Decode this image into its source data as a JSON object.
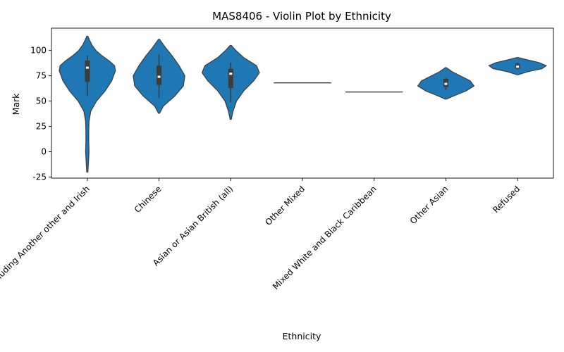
{
  "chart_data": {
    "type": "violin",
    "title": "MAS8406 - Violin Plot by Ethnicity",
    "xlabel": "Ethnicity",
    "ylabel": "Mark",
    "ylim": [
      -26,
      122
    ],
    "yticks": [
      -25,
      0,
      25,
      50,
      75,
      100
    ],
    "grid": false,
    "color": "#1f77b4",
    "box_color": "#3d3d3d",
    "categories": [
      "White including Another other and Irish",
      "Chinese",
      "Asian or Asian British (all)",
      "Other Mixed",
      "Mixed White and Black Caribbean",
      "Other Asian",
      "Refused"
    ],
    "violins": [
      {
        "category": "White including Another other and Irish",
        "profile": [
          [
            -20,
            0.02
          ],
          [
            -10,
            0.04
          ],
          [
            0,
            0.06
          ],
          [
            10,
            0.05
          ],
          [
            20,
            0.05
          ],
          [
            30,
            0.06
          ],
          [
            40,
            0.12
          ],
          [
            50,
            0.32
          ],
          [
            60,
            0.62
          ],
          [
            70,
            0.85
          ],
          [
            80,
            0.98
          ],
          [
            85,
            0.95
          ],
          [
            90,
            0.75
          ],
          [
            95,
            0.5
          ],
          [
            100,
            0.3
          ],
          [
            105,
            0.17
          ],
          [
            110,
            0.08
          ],
          [
            114,
            0.02
          ]
        ],
        "box": {
          "q1": 69,
          "median": 83,
          "q3": 90,
          "whisker_low": 55,
          "whisker_high": 95
        }
      },
      {
        "category": "Chinese",
        "profile": [
          [
            38,
            0.02
          ],
          [
            45,
            0.15
          ],
          [
            55,
            0.55
          ],
          [
            65,
            0.85
          ],
          [
            75,
            0.9
          ],
          [
            85,
            0.7
          ],
          [
            95,
            0.45
          ],
          [
            103,
            0.22
          ],
          [
            111,
            0.02
          ]
        ],
        "box": {
          "q1": 66,
          "median": 74,
          "q3": 85,
          "whisker_low": 53,
          "whisker_high": 96
        }
      },
      {
        "category": "Asian or Asian British (all)",
        "profile": [
          [
            32,
            0.02
          ],
          [
            40,
            0.08
          ],
          [
            50,
            0.2
          ],
          [
            60,
            0.45
          ],
          [
            70,
            0.8
          ],
          [
            78,
            1.0
          ],
          [
            85,
            0.9
          ],
          [
            93,
            0.45
          ],
          [
            100,
            0.18
          ],
          [
            105,
            0.02
          ]
        ],
        "box": {
          "q1": 63,
          "median": 77,
          "q3": 82,
          "whisker_low": 49,
          "whisker_high": 88
        }
      },
      {
        "category": "Other Mixed",
        "line": 68
      },
      {
        "category": "Mixed White and Black Caribbean",
        "line": 59
      },
      {
        "category": "Other Asian",
        "profile": [
          [
            52,
            0.02
          ],
          [
            56,
            0.35
          ],
          [
            60,
            0.7
          ],
          [
            65,
            0.98
          ],
          [
            70,
            0.85
          ],
          [
            75,
            0.5
          ],
          [
            79,
            0.22
          ],
          [
            83,
            0.02
          ]
        ],
        "box": {
          "q1": 64,
          "median": 67,
          "q3": 72,
          "whisker_low": 61,
          "whisker_high": 73
        }
      },
      {
        "category": "Refused",
        "profile": [
          [
            76,
            0.02
          ],
          [
            79,
            0.35
          ],
          [
            82,
            0.85
          ],
          [
            85,
            1.0
          ],
          [
            88,
            0.75
          ],
          [
            91,
            0.3
          ],
          [
            93,
            0.02
          ]
        ],
        "box": {
          "q1": 82,
          "median": 84,
          "q3": 87,
          "whisker_low": 81,
          "whisker_high": 88
        }
      }
    ]
  }
}
